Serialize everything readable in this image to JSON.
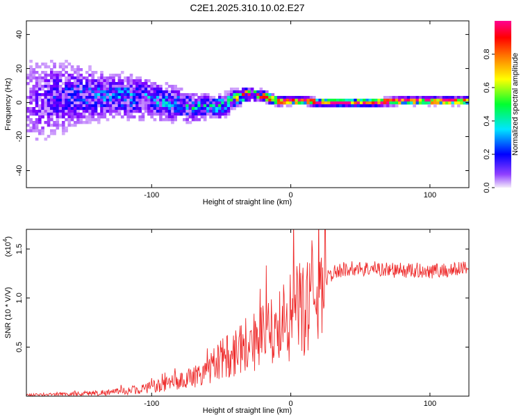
{
  "title": "C2E1.2025.310.10.02.E27",
  "chart_data": [
    {
      "type": "heatmap",
      "name": "spectrogram",
      "xlabel": "Height of straight line (km)",
      "ylabel": "Frequency (Hz)",
      "xlim": [
        -190,
        128
      ],
      "ylim": [
        -50,
        48
      ],
      "xticks": [
        -100,
        0,
        100
      ],
      "xtick_labels": [
        "-100",
        "0",
        "100"
      ],
      "yticks": [
        -40,
        -20,
        0,
        20,
        40
      ],
      "ytick_labels": [
        "-40",
        "-20",
        "0",
        "20",
        "40"
      ],
      "colorbar": {
        "label": "Normalized spectral amplitude",
        "range": [
          0,
          1
        ],
        "ticks": [
          0.0,
          0.2,
          0.4,
          0.6,
          0.8
        ],
        "tick_labels": [
          "0.0",
          "0.2",
          "0.4",
          "0.6",
          "0.8"
        ],
        "colormap": [
          "#f4ecfa",
          "#7f00ff",
          "#0000ff",
          "#00e5ff",
          "#00ff30",
          "#ffff00",
          "#ff8000",
          "#ff0000",
          "#ff0090"
        ]
      },
      "ridge": {
        "x": [
          -190,
          -170,
          -150,
          -130,
          -110,
          -100,
          -90,
          -80,
          -70,
          -60,
          -50,
          -40,
          -35,
          -30,
          -20,
          -10,
          0,
          10,
          20,
          40,
          60,
          80,
          100,
          128
        ],
        "frequency": [
          0,
          3,
          4,
          4,
          3,
          2,
          0,
          -1,
          -3,
          -2,
          -2,
          2,
          4,
          5,
          4,
          1,
          1,
          1,
          0,
          0,
          0,
          1,
          1,
          1
        ],
        "spread": [
          22,
          16,
          12,
          9,
          9,
          8,
          8,
          7,
          6,
          5,
          5,
          4,
          3,
          2.5,
          2,
          1.8,
          1.5,
          1.5,
          1.5,
          1.5,
          1.5,
          1.5,
          1.5,
          1.5
        ],
        "amplitude": [
          0.08,
          0.2,
          0.25,
          0.3,
          0.3,
          0.3,
          0.3,
          0.3,
          0.35,
          0.35,
          0.4,
          0.5,
          0.7,
          0.85,
          0.95,
          0.95,
          0.95,
          0.97,
          1.0,
          1.0,
          1.0,
          1.0,
          1.0,
          1.0
        ]
      }
    },
    {
      "type": "line",
      "name": "snr",
      "xlabel": "Height of straight line (km)",
      "ylabel": "SNR (10 * V/V)",
      "y_multiplier_label": "(x10",
      "y_multiplier_exp": "4",
      "xlim": [
        -190,
        128
      ],
      "ylim": [
        0,
        1.7
      ],
      "xticks": [
        -100,
        0,
        100
      ],
      "xtick_labels": [
        "-100",
        "0",
        "100"
      ],
      "yticks": [
        0.5,
        1.0,
        1.5
      ],
      "ytick_labels": [
        "0.5",
        "1.0",
        "1.5"
      ],
      "color": "#ee2a2a",
      "series": [
        {
          "name": "SNR",
          "x": [
            -190,
            -175,
            -160,
            -145,
            -130,
            -120,
            -110,
            -100,
            -90,
            -80,
            -70,
            -60,
            -55,
            -50,
            -45,
            -40,
            -35,
            -30,
            -25,
            -20,
            -15,
            -10,
            -5,
            0,
            5,
            10,
            15,
            20,
            25,
            30,
            35,
            40,
            50,
            60,
            70,
            80,
            90,
            100,
            110,
            120,
            125,
            128
          ],
          "y": [
            0.01,
            0.015,
            0.02,
            0.03,
            0.04,
            0.05,
            0.07,
            0.09,
            0.12,
            0.15,
            0.2,
            0.27,
            0.32,
            0.37,
            0.42,
            0.47,
            0.52,
            0.55,
            0.58,
            0.6,
            0.63,
            0.68,
            0.74,
            0.8,
            0.86,
            0.9,
            1.02,
            1.12,
            1.2,
            1.25,
            1.28,
            1.3,
            1.3,
            1.3,
            1.29,
            1.28,
            1.28,
            1.28,
            1.28,
            1.29,
            1.32,
            1.3
          ]
        }
      ]
    }
  ]
}
